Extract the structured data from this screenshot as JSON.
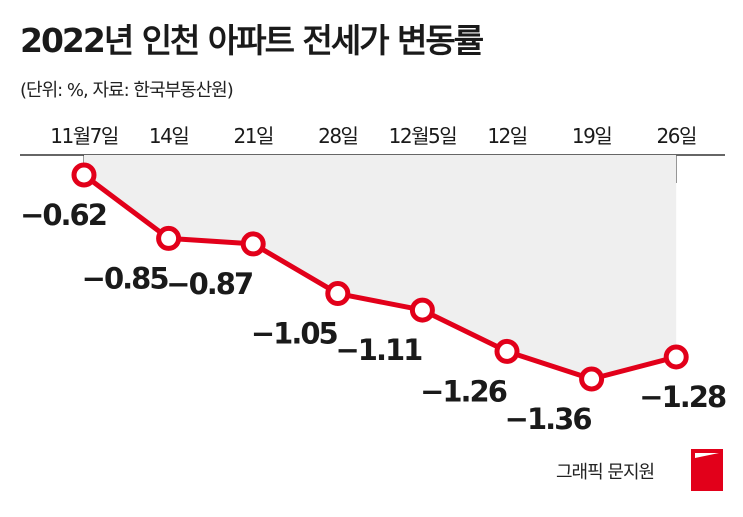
{
  "header": {
    "title": "2022년 인천 아파트 전세가 변동률",
    "subtitle": "(단위: %, 자료: 한국부동산원)"
  },
  "footer": {
    "credit": "그래픽 문지원"
  },
  "colors": {
    "line": "#e2001a",
    "area": "#efefef",
    "axis": "#333333",
    "text": "#1a1a1a"
  },
  "chart_data": {
    "type": "line",
    "categories": [
      "11월7일",
      "14일",
      "21일",
      "28일",
      "12월5일",
      "12일",
      "19일",
      "26일"
    ],
    "values": [
      -0.62,
      -0.85,
      -0.87,
      -1.05,
      -1.11,
      -1.26,
      -1.36,
      -1.28
    ],
    "data_labels": [
      "−0.62",
      "−0.85",
      "−0.87",
      "−1.05",
      "−1.11",
      "−1.26",
      "−1.36",
      "−1.28"
    ],
    "area_fill": true,
    "ylim": [
      -1.5,
      -0.5
    ],
    "grid": false,
    "legend": "none"
  }
}
